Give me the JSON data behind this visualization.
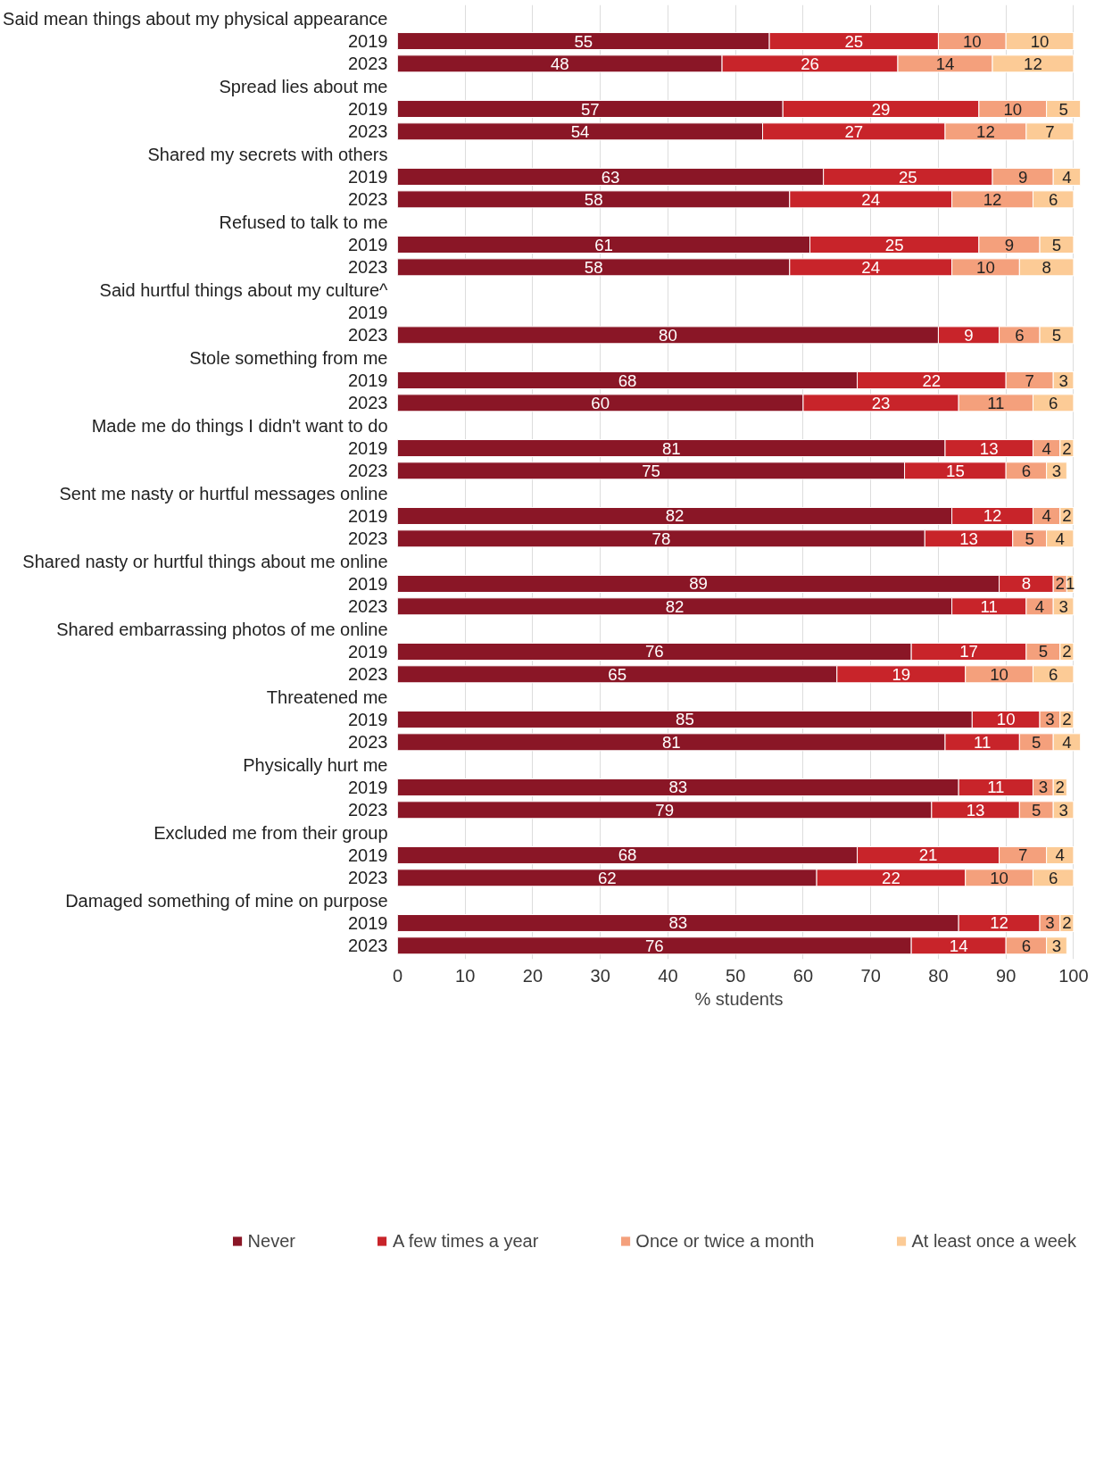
{
  "chart_data": {
    "type": "bar",
    "orientation": "horizontal",
    "stacked": true,
    "data_labels": true,
    "xlabel": "% students",
    "xlim": [
      0,
      101
    ],
    "xticks": [
      0,
      10,
      20,
      30,
      40,
      50,
      60,
      70,
      80,
      90,
      100
    ],
    "grid": "x",
    "legend": "bottom",
    "categories": [
      "Said mean things about my physical appearance",
      "2019",
      "2023",
      "Spread lies about me",
      "2019",
      "2023",
      "Shared my secrets with others",
      "2019",
      "2023",
      "Refused to talk to me",
      "2019",
      "2023",
      "Said hurtful things about my culture^",
      "2019",
      "2023",
      "Stole something from me",
      "2019",
      "2023",
      "Made me do things I didn't want to do",
      "2019",
      "2023",
      "Sent me nasty or hurtful messages online",
      "2019",
      "2023",
      "Shared nasty or hurtful things about me online",
      "2019",
      "2023",
      "Shared embarrassing photos of me online",
      "2019",
      "2023",
      "Threatened me",
      "2019",
      "2023",
      "Physically hurt me",
      "2019",
      "2023",
      "Excluded me from their group",
      "2019",
      "2023",
      "Damaged something of mine on purpose",
      "2019",
      "2023"
    ],
    "series": [
      {
        "name": "Never",
        "color": "#8a1626",
        "values": [
          null,
          55,
          48,
          null,
          57,
          54,
          null,
          63,
          58,
          null,
          61,
          58,
          null,
          null,
          80,
          null,
          68,
          60,
          null,
          81,
          75,
          null,
          82,
          78,
          null,
          89,
          82,
          null,
          76,
          65,
          null,
          85,
          81,
          null,
          83,
          79,
          null,
          68,
          62,
          null,
          83,
          76
        ]
      },
      {
        "name": "A few times a year",
        "color": "#c8242a",
        "values": [
          null,
          25,
          26,
          null,
          29,
          27,
          null,
          25,
          24,
          null,
          25,
          24,
          null,
          null,
          9,
          null,
          22,
          23,
          null,
          13,
          15,
          null,
          12,
          13,
          null,
          8,
          11,
          null,
          17,
          19,
          null,
          10,
          11,
          null,
          11,
          13,
          null,
          21,
          22,
          null,
          12,
          14
        ]
      },
      {
        "name": "Once or twice a month",
        "color": "#f4a07c",
        "values": [
          null,
          10,
          14,
          null,
          10,
          12,
          null,
          9,
          12,
          null,
          9,
          10,
          null,
          null,
          6,
          null,
          7,
          11,
          null,
          4,
          6,
          null,
          4,
          5,
          null,
          2,
          4,
          null,
          5,
          10,
          null,
          3,
          5,
          null,
          3,
          5,
          null,
          7,
          10,
          null,
          3,
          6
        ]
      },
      {
        "name": "At least once a week",
        "color": "#fccb96",
        "values": [
          null,
          10,
          12,
          null,
          5,
          7,
          null,
          4,
          6,
          null,
          5,
          8,
          null,
          null,
          5,
          null,
          3,
          6,
          null,
          2,
          3,
          null,
          2,
          4,
          null,
          1,
          3,
          null,
          2,
          6,
          null,
          2,
          4,
          null,
          2,
          3,
          null,
          4,
          6,
          null,
          2,
          3
        ]
      }
    ]
  }
}
